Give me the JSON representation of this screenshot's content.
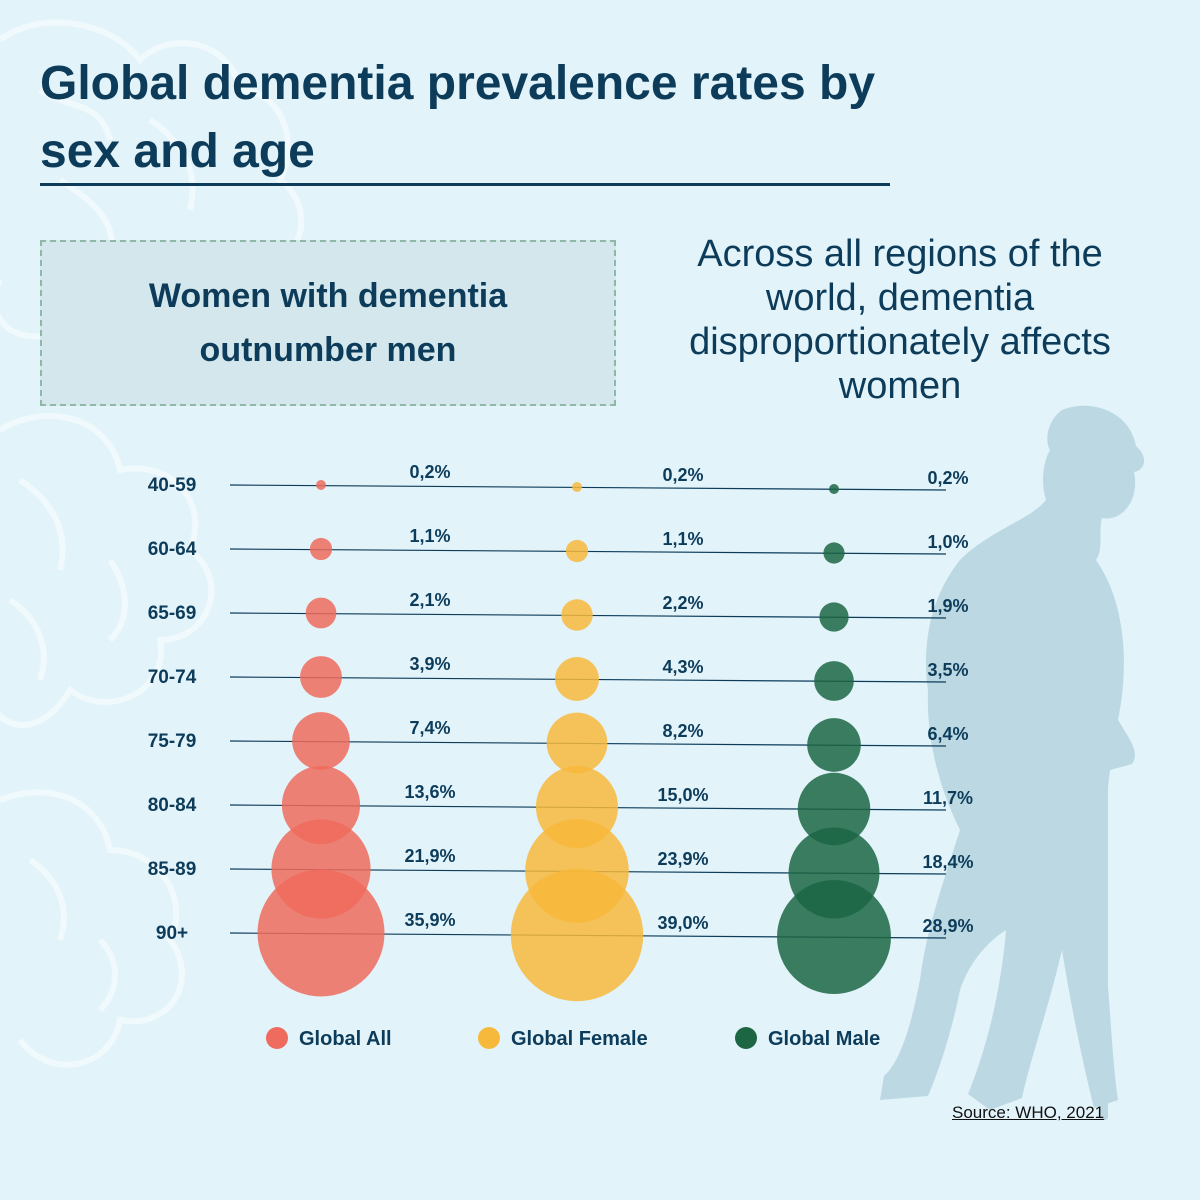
{
  "title": "Global dementia prevalence rates by sex and age",
  "callout": "Women with dementia outnumber men",
  "subtitle": "Across all regions of the world, dementia disproportionately affects women",
  "source": "Source: WHO, 2021",
  "colors": {
    "background": "#e2f3fa",
    "text": "#0d3c5a",
    "global_all": "#ef6b5d",
    "global_female": "#f7b93b",
    "global_male": "#1c6644"
  },
  "icons": {
    "background": "walking-elderly-man-silhouette"
  },
  "chart_data": {
    "type": "bubble",
    "title": "Global dementia prevalence rates by sex and age",
    "categories": [
      "40-59",
      "60-64",
      "65-69",
      "70-74",
      "75-79",
      "80-84",
      "85-89",
      "90+"
    ],
    "series": [
      {
        "name": "Global All",
        "color": "#ef6b5d",
        "values": [
          0.2,
          1.1,
          2.1,
          3.9,
          7.4,
          13.6,
          21.9,
          35.9
        ],
        "labels": [
          "0,2%",
          "1,1%",
          "2,1%",
          "3,9%",
          "7,4%",
          "13,6%",
          "21,9%",
          "35,9%"
        ]
      },
      {
        "name": "Global Female",
        "color": "#f7b93b",
        "values": [
          0.2,
          1.1,
          2.2,
          4.3,
          8.2,
          15.0,
          23.9,
          39.0
        ],
        "labels": [
          "0,2%",
          "1,1%",
          "2,2%",
          "4,3%",
          "8,2%",
          "15,0%",
          "23,9%",
          "39,0%"
        ]
      },
      {
        "name": "Global Male",
        "color": "#1c6644",
        "values": [
          0.2,
          1.0,
          1.9,
          3.5,
          6.4,
          11.7,
          18.4,
          28.9
        ],
        "labels": [
          "0,2%",
          "1,0%",
          "1,9%",
          "3,5%",
          "6,4%",
          "11,7%",
          "18,4%",
          "28,9%"
        ]
      }
    ],
    "legend": "bottom",
    "unit": "%"
  }
}
